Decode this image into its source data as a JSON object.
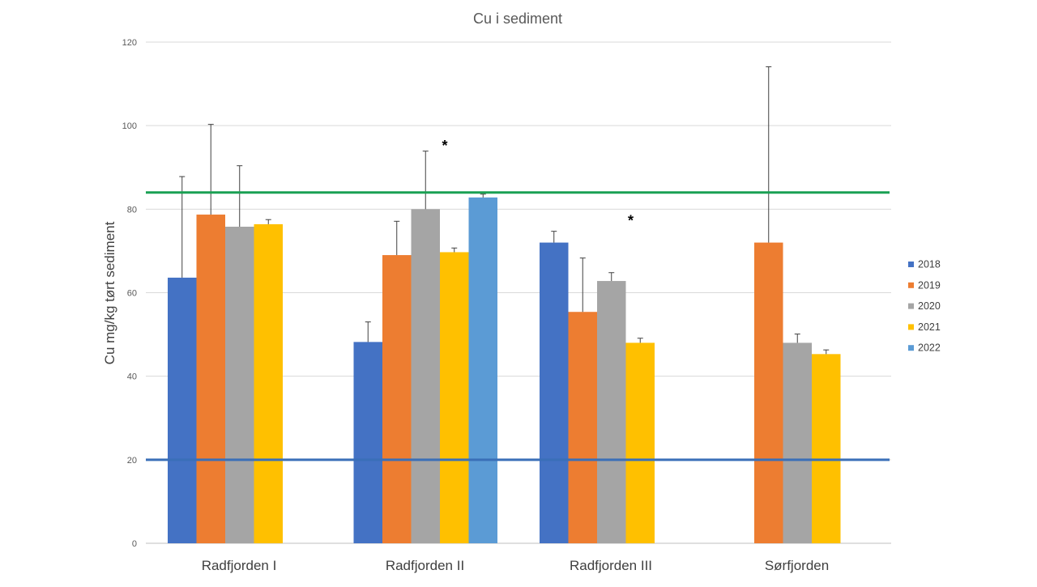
{
  "chart_data": {
    "type": "bar",
    "title": "Cu i sediment",
    "xlabel": "",
    "ylabel": "Cu mg/kg tørt sediment",
    "ylim": [
      0,
      120
    ],
    "yticks": [
      0,
      20,
      40,
      60,
      80,
      100,
      120
    ],
    "grid": true,
    "legend_position": "right",
    "categories": [
      "Radfjorden I",
      "Radfjorden II",
      "Radfjorden III",
      "Sørfjorden"
    ],
    "series": [
      {
        "name": "2018",
        "color": "#4472c4",
        "values": [
          63.6,
          48.2,
          72.0,
          null
        ],
        "errors": [
          24.2,
          4.8,
          2.7,
          null
        ]
      },
      {
        "name": "2019",
        "color": "#ed7d31",
        "values": [
          78.7,
          69.0,
          55.4,
          72.0
        ],
        "errors": [
          21.6,
          8.1,
          12.9,
          42.1
        ]
      },
      {
        "name": "2020",
        "color": "#a5a5a5",
        "values": [
          75.8,
          80.0,
          62.8,
          48.0
        ],
        "errors": [
          14.6,
          13.9,
          2.0,
          2.1
        ]
      },
      {
        "name": "2021",
        "color": "#ffc000",
        "values": [
          76.4,
          69.7,
          48.0,
          45.3
        ],
        "errors": [
          1.1,
          1.0,
          1.1,
          1.0
        ]
      },
      {
        "name": "2022",
        "color": "#5b9bd5",
        "values": [
          null,
          82.8,
          null,
          null
        ],
        "errors": [
          null,
          0.8,
          null,
          null
        ]
      }
    ],
    "reference_lines": [
      {
        "value": 84,
        "color": "#1aa053"
      },
      {
        "value": 20,
        "color": "#3a6fb8"
      }
    ],
    "annotations": [
      {
        "text": "*",
        "category": "Radfjorden II",
        "series": "2020",
        "y": 96
      },
      {
        "text": "*",
        "category": "Radfjorden III",
        "series": "2020",
        "y": 78
      }
    ]
  }
}
